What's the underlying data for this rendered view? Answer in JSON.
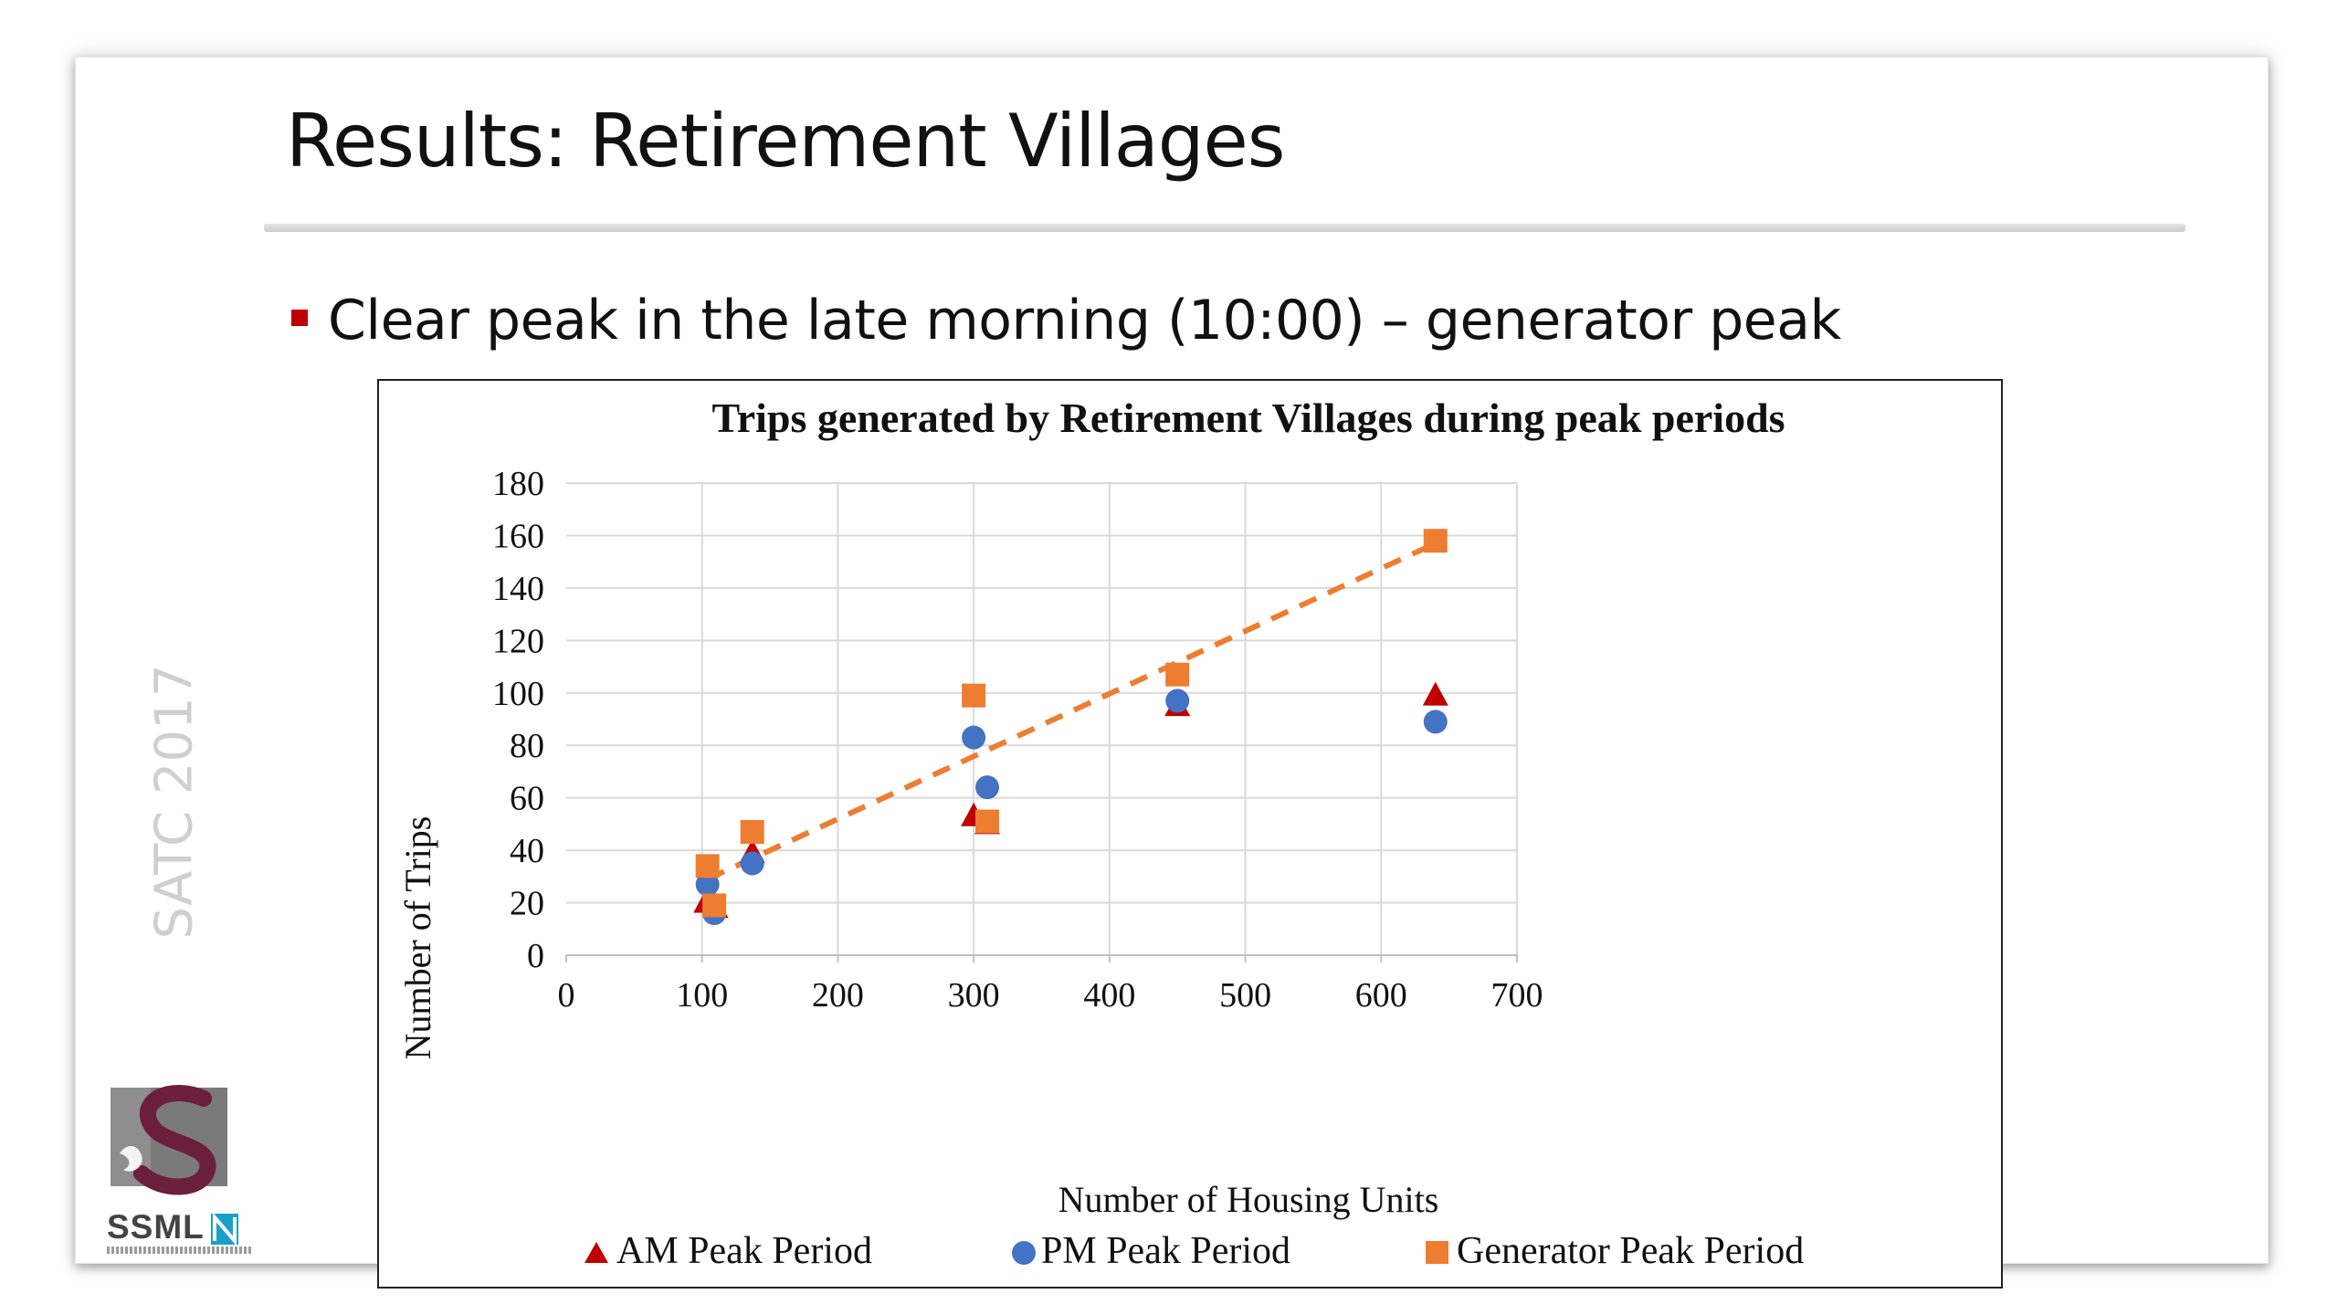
{
  "slide": {
    "title": "Results: Retirement Villages",
    "bullet": "Clear peak in the late morning (10:00) – generator peak",
    "side_label": "SATC 2017",
    "logo_text": "SSML"
  },
  "colors": {
    "bullet": "#c00000",
    "am": "#c00000",
    "pm": "#4472c4",
    "generator": "#ed7d31",
    "trendline": "#ed7d31",
    "grid": "#d9d9d9"
  },
  "chart_data": {
    "type": "scatter",
    "title": "Trips generated by Retirement Villages during peak periods",
    "xlabel": "Number of Housing Units",
    "ylabel": "Number of Trips",
    "xlim": [
      0,
      700
    ],
    "ylim": [
      0,
      180
    ],
    "xticks": [
      0,
      100,
      200,
      300,
      400,
      500,
      600,
      700
    ],
    "yticks": [
      0,
      20,
      40,
      60,
      80,
      100,
      120,
      140,
      160,
      180
    ],
    "xtick_labels": [
      "0",
      "100",
      "200",
      "300",
      "400",
      "500",
      "600",
      "700"
    ],
    "ytick_labels": [
      "0",
      "20",
      "40",
      "60",
      "80",
      "100",
      "120",
      "140",
      "160",
      "180"
    ],
    "grid": true,
    "legend_position": "bottom",
    "series": [
      {
        "name": "AM Peak Period",
        "marker": "triangle",
        "points": [
          [
            103,
            20
          ],
          [
            110,
            18
          ],
          [
            137,
            39
          ],
          [
            300,
            53
          ],
          [
            310,
            50
          ],
          [
            450,
            95
          ],
          [
            640,
            99
          ]
        ]
      },
      {
        "name": "PM Peak Period",
        "marker": "circle",
        "points": [
          [
            104,
            27
          ],
          [
            109,
            16
          ],
          [
            137,
            35
          ],
          [
            300,
            83
          ],
          [
            310,
            64
          ],
          [
            450,
            97
          ],
          [
            640,
            89
          ]
        ]
      },
      {
        "name": "Generator Peak Period",
        "marker": "square",
        "points": [
          [
            104,
            34
          ],
          [
            109,
            19
          ],
          [
            137,
            47
          ],
          [
            300,
            99
          ],
          [
            310,
            51
          ],
          [
            450,
            107
          ],
          [
            640,
            158
          ]
        ]
      }
    ],
    "trendline": {
      "series": "Generator Peak Period",
      "style": "dashed",
      "from": [
        104,
        29
      ],
      "to": [
        640,
        157
      ]
    }
  }
}
